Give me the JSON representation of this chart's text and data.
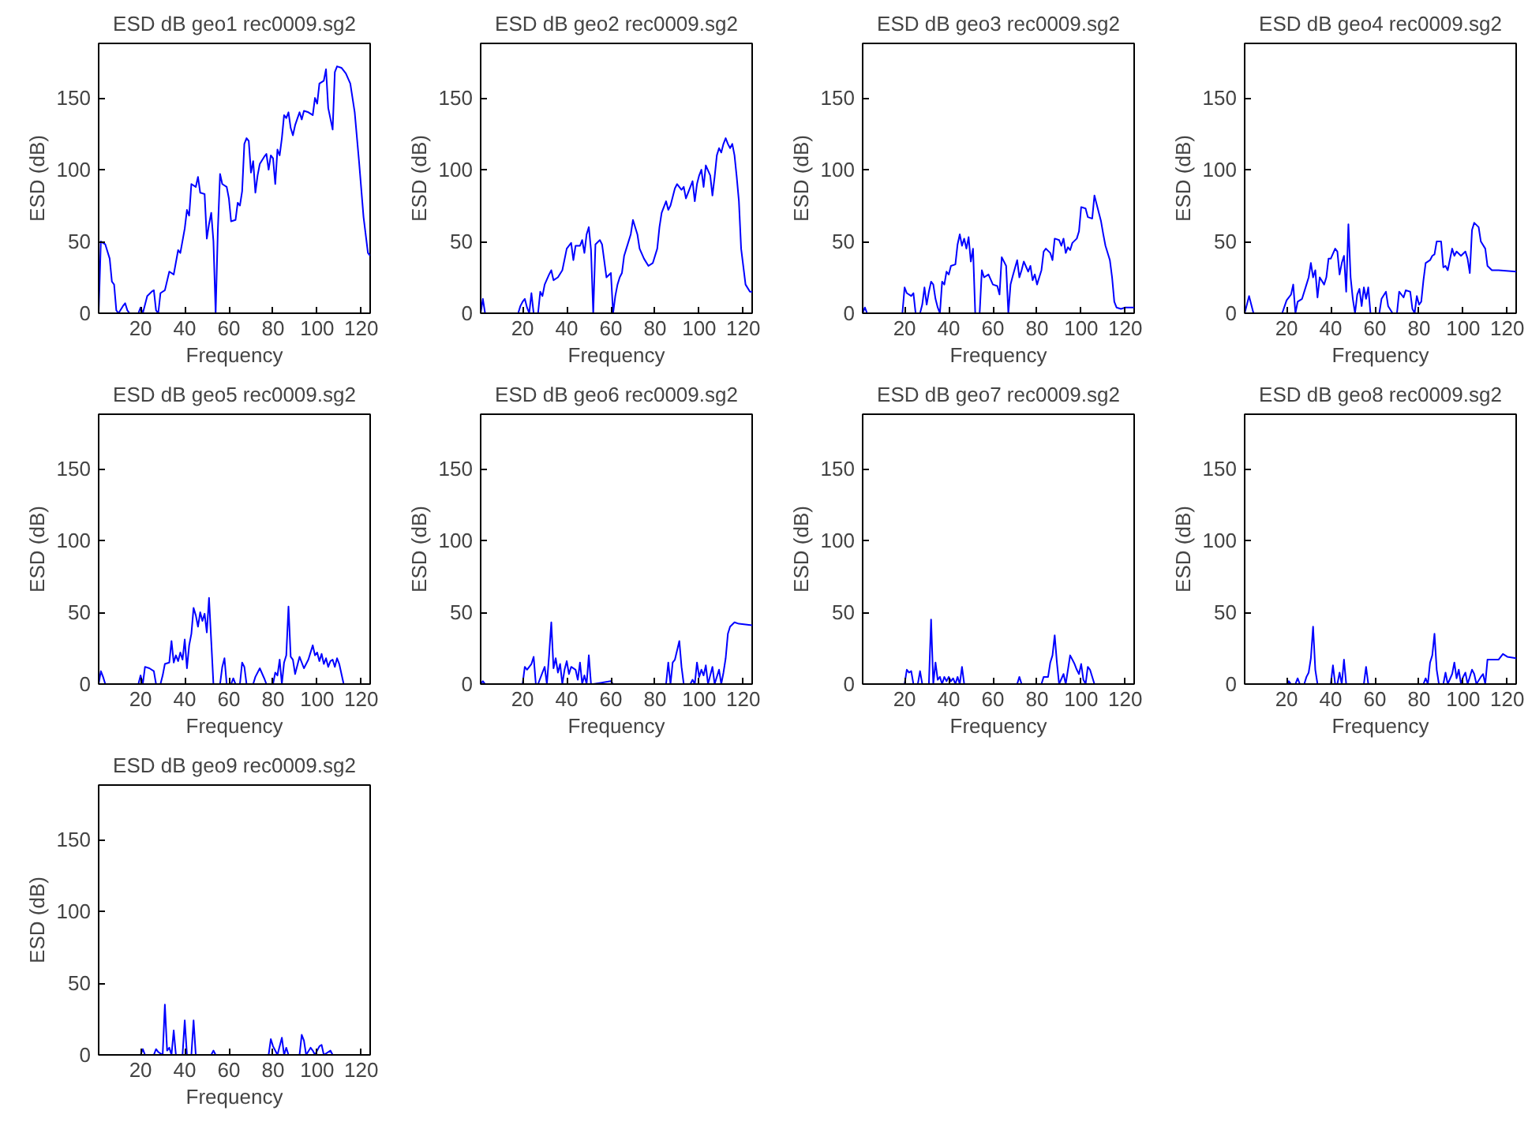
{
  "chart_data": [
    {
      "type": "line",
      "title": "ESD dB geo1 rec0009.sg2",
      "xlabel": "Frequency",
      "ylabel": "ESD (dB)",
      "xlim": [
        1,
        124
      ],
      "xticks": [
        20,
        40,
        60,
        80,
        100,
        120
      ],
      "ylim": [
        0,
        188
      ],
      "yticks": [
        0,
        50,
        100,
        150
      ],
      "grid": false,
      "series": [
        {
          "color": "#0000ff",
          "x": [
            1,
            2,
            4,
            6,
            7,
            8,
            9,
            10,
            12,
            13,
            14,
            15,
            19,
            20,
            21,
            23,
            25,
            26,
            27,
            28,
            29,
            31,
            33,
            35,
            37,
            38,
            40,
            41,
            42,
            43,
            45,
            46,
            47,
            49,
            50,
            51,
            52,
            53,
            54,
            55,
            56,
            57,
            59,
            60,
            61,
            63,
            64,
            65,
            66,
            67,
            68,
            69,
            70,
            71,
            72,
            73,
            74,
            76,
            77,
            78,
            79,
            80,
            81,
            82,
            83,
            84,
            85,
            86,
            87,
            88,
            89,
            90,
            92,
            93,
            94,
            96,
            98,
            99,
            100,
            101,
            103,
            104,
            105,
            107,
            108,
            109,
            111,
            113,
            115,
            117,
            119,
            121,
            123,
            124
          ],
          "values": [
            0,
            50,
            48,
            38,
            22,
            20,
            2,
            0,
            5,
            7,
            2,
            0,
            0,
            4,
            0,
            12,
            15,
            16,
            2,
            0,
            14,
            16,
            29,
            27,
            44,
            42,
            59,
            72,
            68,
            90,
            88,
            95,
            84,
            83,
            52,
            62,
            70,
            50,
            0,
            58,
            97,
            90,
            88,
            80,
            64,
            65,
            77,
            75,
            85,
            118,
            122,
            120,
            98,
            106,
            84,
            96,
            104,
            109,
            111,
            100,
            110,
            108,
            90,
            114,
            110,
            122,
            138,
            136,
            140,
            129,
            124,
            131,
            140,
            135,
            141,
            140,
            138,
            150,
            146,
            160,
            162,
            170,
            143,
            128,
            168,
            172,
            171,
            167,
            160,
            140,
            105,
            67,
            42,
            40
          ]
        }
      ]
    },
    {
      "type": "line",
      "title": "ESD dB geo2 rec0009.sg2",
      "xlabel": "Frequency",
      "ylabel": "ESD (dB)",
      "xlim": [
        1,
        124
      ],
      "xticks": [
        20,
        40,
        60,
        80,
        100,
        120
      ],
      "ylim": [
        0,
        188
      ],
      "yticks": [
        0,
        50,
        100,
        150
      ],
      "grid": false,
      "series": [
        {
          "color": "#0000ff",
          "x": [
            1,
            2,
            3,
            18,
            19,
            20,
            21,
            22,
            23,
            24,
            25,
            27,
            28,
            29,
            30,
            32,
            33,
            34,
            36,
            38,
            40,
            42,
            43,
            44,
            46,
            47,
            48,
            49,
            50,
            51,
            52,
            53,
            55,
            56,
            58,
            60,
            61,
            62,
            63,
            64,
            65,
            66,
            67,
            69,
            70,
            72,
            73,
            75,
            77,
            79,
            81,
            82,
            83,
            85,
            86,
            87,
            89,
            90,
            92,
            93,
            94,
            96,
            97,
            98,
            99,
            100,
            101,
            102,
            103,
            105,
            106,
            107,
            108,
            109,
            110,
            111,
            112,
            113,
            114,
            115,
            116,
            117,
            118,
            119,
            121,
            123,
            124
          ],
          "values": [
            0,
            10,
            0,
            0,
            5,
            8,
            10,
            4,
            0,
            14,
            0,
            0,
            15,
            12,
            20,
            27,
            30,
            23,
            25,
            30,
            45,
            49,
            37,
            47,
            47,
            51,
            42,
            55,
            60,
            44,
            0,
            48,
            51,
            48,
            25,
            28,
            0,
            12,
            20,
            25,
            28,
            40,
            45,
            55,
            65,
            55,
            45,
            38,
            33,
            35,
            45,
            60,
            70,
            78,
            72,
            75,
            87,
            90,
            86,
            88,
            80,
            88,
            92,
            78,
            90,
            96,
            100,
            88,
            103,
            96,
            82,
            95,
            110,
            115,
            112,
            118,
            122,
            118,
            115,
            118,
            110,
            95,
            78,
            45,
            20,
            15,
            15
          ]
        }
      ]
    },
    {
      "type": "line",
      "title": "ESD dB geo3 rec0009.sg2",
      "xlabel": "Frequency",
      "ylabel": "ESD (dB)",
      "xlim": [
        1,
        124
      ],
      "xticks": [
        20,
        40,
        60,
        80,
        100,
        120
      ],
      "ylim": [
        0,
        188
      ],
      "yticks": [
        0,
        50,
        100,
        150
      ],
      "grid": false,
      "series": [
        {
          "color": "#0000ff",
          "x": [
            1,
            2,
            3,
            19,
            20,
            21,
            23,
            24,
            25,
            27,
            28,
            29,
            30,
            31,
            32,
            33,
            34,
            35,
            36,
            37,
            38,
            39,
            40,
            41,
            43,
            44,
            45,
            46,
            47,
            48,
            49,
            50,
            51,
            52,
            54,
            55,
            56,
            58,
            60,
            62,
            63,
            64,
            66,
            67,
            68,
            69,
            71,
            72,
            73,
            74,
            76,
            77,
            78,
            79,
            80,
            82,
            83,
            84,
            86,
            87,
            88,
            90,
            91,
            92,
            93,
            94,
            95,
            96,
            98,
            99,
            100,
            102,
            103,
            105,
            106,
            107,
            109,
            110,
            111,
            113,
            114,
            115,
            116,
            118,
            120,
            124
          ],
          "values": [
            0,
            4,
            0,
            0,
            18,
            14,
            12,
            14,
            0,
            0,
            6,
            18,
            6,
            15,
            22,
            20,
            10,
            4,
            0,
            22,
            20,
            29,
            27,
            33,
            34,
            48,
            55,
            47,
            52,
            45,
            53,
            36,
            45,
            0,
            0,
            30,
            25,
            27,
            20,
            19,
            13,
            39,
            33,
            0,
            20,
            26,
            37,
            25,
            30,
            36,
            29,
            33,
            23,
            27,
            20,
            30,
            43,
            45,
            42,
            37,
            52,
            51,
            47,
            52,
            42,
            46,
            44,
            49,
            52,
            57,
            74,
            73,
            67,
            66,
            82,
            76,
            64,
            55,
            47,
            37,
            25,
            8,
            4,
            3,
            4,
            4
          ]
        }
      ]
    },
    {
      "type": "line",
      "title": "ESD dB geo4 rec0009.sg2",
      "xlabel": "Frequency",
      "ylabel": "ESD (dB)",
      "xlim": [
        1,
        124
      ],
      "xticks": [
        20,
        40,
        60,
        80,
        100,
        120
      ],
      "ylim": [
        0,
        188
      ],
      "yticks": [
        0,
        50,
        100,
        150
      ],
      "grid": false,
      "series": [
        {
          "color": "#0000ff",
          "x": [
            1,
            3,
            5,
            18,
            20,
            22,
            23,
            24,
            25,
            27,
            29,
            30,
            31,
            32,
            33,
            34,
            35,
            37,
            38,
            39,
            40,
            42,
            43,
            44,
            45,
            46,
            47,
            48,
            49,
            50,
            51,
            52,
            53,
            54,
            55,
            56,
            57,
            58,
            62,
            63,
            65,
            66,
            68,
            70,
            71,
            73,
            74,
            76,
            77,
            78,
            79,
            80,
            81,
            82,
            83,
            85,
            86,
            87,
            88,
            90,
            91,
            92,
            93,
            95,
            96,
            97,
            99,
            101,
            102,
            103,
            104,
            105,
            107,
            108,
            110,
            111,
            113,
            116,
            124
          ],
          "values": [
            0,
            12,
            0,
            0,
            9,
            13,
            20,
            0,
            8,
            10,
            20,
            25,
            35,
            25,
            30,
            11,
            25,
            20,
            25,
            38,
            38,
            45,
            43,
            27,
            35,
            40,
            15,
            62,
            25,
            10,
            0,
            13,
            17,
            5,
            18,
            10,
            18,
            0,
            0,
            10,
            15,
            5,
            0,
            0,
            15,
            11,
            16,
            15,
            3,
            0,
            12,
            6,
            8,
            23,
            35,
            37,
            40,
            41,
            50,
            50,
            32,
            33,
            30,
            45,
            40,
            43,
            40,
            43,
            38,
            28,
            58,
            63,
            60,
            50,
            45,
            33,
            30,
            30,
            29
          ]
        }
      ]
    },
    {
      "type": "line",
      "title": "ESD dB geo5 rec0009.sg2",
      "xlabel": "Frequency",
      "ylabel": "ESD (dB)",
      "xlim": [
        1,
        124
      ],
      "xticks": [
        20,
        40,
        60,
        80,
        100,
        120
      ],
      "ylim": [
        0,
        188
      ],
      "yticks": [
        0,
        50,
        100,
        150
      ],
      "grid": false,
      "series": [
        {
          "color": "#0000ff",
          "x": [
            1,
            2,
            3,
            4,
            19,
            20,
            21,
            22,
            24,
            26,
            27,
            29,
            30,
            31,
            33,
            34,
            35,
            36,
            37,
            38,
            39,
            40,
            41,
            42,
            43,
            44,
            45,
            46,
            47,
            48,
            49,
            50,
            51,
            52,
            53,
            56,
            57,
            58,
            59,
            61,
            62,
            63,
            65,
            66,
            67,
            68,
            71,
            72,
            74,
            76,
            77,
            80,
            81,
            82,
            83,
            84,
            85,
            86,
            87,
            88,
            89,
            90,
            92,
            94,
            96,
            98,
            99,
            100,
            101,
            102,
            103,
            104,
            105,
            106,
            107,
            108,
            109,
            110,
            112,
            124
          ],
          "values": [
            0,
            9,
            5,
            0,
            0,
            6,
            0,
            12,
            11,
            9,
            0,
            0,
            6,
            14,
            15,
            30,
            15,
            20,
            16,
            22,
            17,
            31,
            11,
            27,
            35,
            53,
            48,
            40,
            50,
            44,
            49,
            36,
            60,
            30,
            0,
            0,
            12,
            18,
            0,
            0,
            4,
            0,
            0,
            15,
            12,
            0,
            0,
            5,
            11,
            4,
            0,
            0,
            8,
            6,
            17,
            0,
            15,
            20,
            54,
            19,
            17,
            7,
            19,
            11,
            17,
            27,
            20,
            22,
            16,
            21,
            14,
            18,
            12,
            16,
            17,
            12,
            18,
            14,
            0,
            0
          ]
        }
      ]
    },
    {
      "type": "line",
      "title": "ESD dB geo6 rec0009.sg2",
      "xlabel": "Frequency",
      "ylabel": "ESD (dB)",
      "xlim": [
        1,
        124
      ],
      "xticks": [
        20,
        40,
        60,
        80,
        100,
        120
      ],
      "ylim": [
        0,
        188
      ],
      "yticks": [
        0,
        50,
        100,
        150
      ],
      "grid": false,
      "series": [
        {
          "color": "#0000ff",
          "x": [
            1,
            2,
            3,
            20,
            21,
            22,
            24,
            25,
            26,
            27,
            29,
            30,
            31,
            32,
            33,
            34,
            35,
            36,
            37,
            38,
            39,
            40,
            41,
            42,
            44,
            45,
            46,
            47,
            48,
            49,
            50,
            51,
            52,
            60,
            61,
            85,
            86,
            87,
            88,
            89,
            91,
            92,
            93,
            96,
            97,
            98,
            99,
            100,
            101,
            102,
            103,
            104,
            106,
            107,
            109,
            110,
            111,
            112,
            113,
            114,
            116,
            118,
            124
          ],
          "values": [
            0,
            2,
            0,
            0,
            12,
            10,
            14,
            19,
            0,
            0,
            8,
            12,
            0,
            20,
            43,
            11,
            18,
            8,
            14,
            0,
            10,
            16,
            7,
            12,
            10,
            3,
            15,
            0,
            6,
            0,
            20,
            0,
            0,
            2,
            0,
            0,
            15,
            0,
            15,
            17,
            30,
            12,
            0,
            0,
            3,
            0,
            15,
            5,
            10,
            6,
            13,
            0,
            12,
            0,
            10,
            0,
            8,
            18,
            35,
            40,
            43,
            42,
            41
          ]
        }
      ]
    },
    {
      "type": "line",
      "title": "ESD dB geo7 rec0009.sg2",
      "xlabel": "Frequency",
      "ylabel": "ESD (dB)",
      "xlim": [
        1,
        124
      ],
      "xticks": [
        20,
        40,
        60,
        80,
        100,
        120
      ],
      "ylim": [
        0,
        188
      ],
      "yticks": [
        0,
        50,
        100,
        150
      ],
      "grid": false,
      "series": [
        {
          "color": "#0000ff",
          "x": [
            1,
            20,
            21,
            22,
            23,
            24,
            26,
            27,
            28,
            31,
            32,
            33,
            34,
            35,
            36,
            37,
            38,
            39,
            40,
            41,
            42,
            43,
            44,
            45,
            46,
            47,
            71,
            72,
            73,
            82,
            83,
            85,
            86,
            87,
            88,
            89,
            90,
            92,
            93,
            95,
            96,
            97,
            98,
            99,
            100,
            101,
            102,
            103,
            104,
            106,
            124
          ],
          "values": [
            0,
            0,
            10,
            8,
            9,
            0,
            0,
            9,
            0,
            0,
            45,
            0,
            15,
            3,
            5,
            0,
            5,
            2,
            5,
            2,
            4,
            0,
            5,
            0,
            12,
            0,
            0,
            5,
            0,
            0,
            5,
            5,
            15,
            20,
            34,
            15,
            0,
            7,
            0,
            20,
            17,
            14,
            10,
            7,
            14,
            3,
            0,
            12,
            10,
            0,
            0
          ]
        }
      ]
    },
    {
      "type": "line",
      "title": "ESD dB geo8 rec0009.sg2",
      "xlabel": "Frequency",
      "ylabel": "ESD (dB)",
      "xlim": [
        1,
        124
      ],
      "xticks": [
        20,
        40,
        60,
        80,
        100,
        120
      ],
      "ylim": [
        0,
        188
      ],
      "yticks": [
        0,
        50,
        100,
        150
      ],
      "grid": false,
      "series": [
        {
          "color": "#0000ff",
          "x": [
            1,
            20,
            21,
            22,
            24,
            25,
            26,
            28,
            29,
            30,
            31,
            32,
            33,
            34,
            40,
            41,
            42,
            43,
            44,
            45,
            46,
            47,
            55,
            56,
            57,
            82,
            83,
            84,
            85,
            86,
            87,
            88,
            89,
            91,
            92,
            93,
            95,
            96,
            97,
            98,
            99,
            100,
            101,
            102,
            104,
            105,
            106,
            108,
            109,
            110,
            111,
            114,
            116,
            118,
            120,
            124
          ],
          "values": [
            0,
            0,
            2,
            0,
            0,
            4,
            0,
            0,
            5,
            8,
            18,
            40,
            10,
            0,
            0,
            13,
            0,
            0,
            8,
            0,
            17,
            0,
            0,
            12,
            0,
            0,
            4,
            0,
            15,
            20,
            35,
            10,
            0,
            0,
            8,
            0,
            7,
            15,
            4,
            10,
            0,
            5,
            8,
            0,
            10,
            7,
            0,
            5,
            7,
            0,
            17,
            17,
            17,
            21,
            19,
            18
          ]
        }
      ]
    },
    {
      "type": "line",
      "title": "ESD dB geo9 rec0009.sg2",
      "xlabel": "Frequency",
      "ylabel": "ESD (dB)",
      "xlim": [
        1,
        124
      ],
      "xticks": [
        20,
        40,
        60,
        80,
        100,
        120
      ],
      "ylim": [
        0,
        188
      ],
      "yticks": [
        0,
        50,
        100,
        150
      ],
      "grid": false,
      "series": [
        {
          "color": "#0000ff",
          "x": [
            1,
            20,
            21,
            22,
            26,
            27,
            28,
            30,
            31,
            32,
            33,
            34,
            35,
            36,
            39,
            40,
            41,
            43,
            44,
            45,
            52,
            53,
            54,
            78,
            79,
            80,
            81,
            82,
            84,
            85,
            86,
            87,
            92,
            93,
            94,
            95,
            97,
            98,
            99,
            101,
            102,
            103,
            106,
            107,
            124
          ],
          "values": [
            0,
            0,
            4,
            0,
            0,
            4,
            2,
            0,
            35,
            3,
            5,
            0,
            17,
            0,
            0,
            24,
            0,
            0,
            24,
            0,
            0,
            3,
            0,
            0,
            11,
            6,
            3,
            0,
            12,
            0,
            5,
            0,
            0,
            14,
            10,
            0,
            5,
            3,
            0,
            6,
            7,
            0,
            3,
            0,
            0
          ]
        }
      ]
    }
  ]
}
